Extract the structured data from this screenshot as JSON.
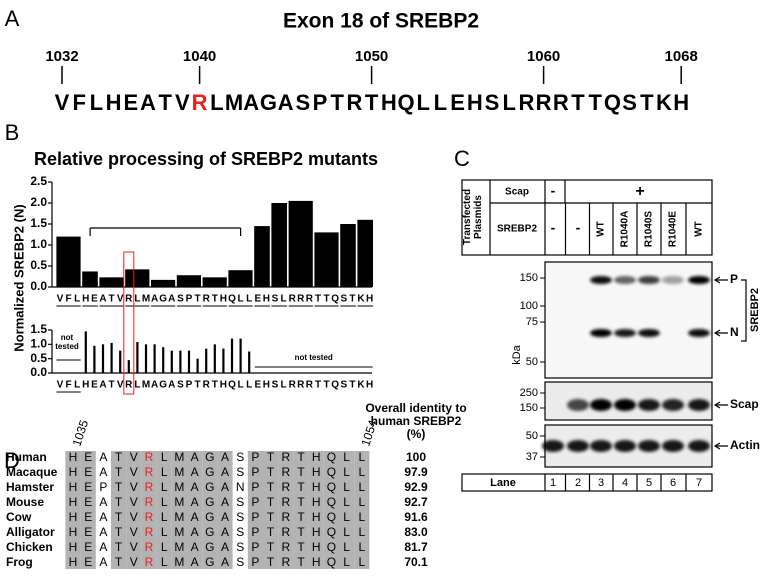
{
  "panel_labels": [
    "A",
    "B",
    "C",
    "D"
  ],
  "exon": {
    "title": "Exon 18 of SREBP2",
    "positions": [
      1032,
      1040,
      1050,
      1060,
      1068
    ],
    "sequence": [
      "V",
      "F",
      "L",
      "H",
      "E",
      "A",
      "T",
      "V",
      "R",
      "L",
      "M",
      "A",
      "G",
      "A",
      "S",
      "P",
      "T",
      "R",
      "T",
      "H",
      "Q",
      "L",
      "L",
      "E",
      "H",
      "S",
      "L",
      "R",
      "R",
      "R",
      "T",
      "T",
      "Q",
      "S",
      "T",
      "K",
      "H"
    ]
  },
  "chart_data": [
    {
      "type": "bar",
      "title": "Relative processing of SREBP2 mutants",
      "y_label": "Normalized SREBP2 (N)",
      "color": "#000000",
      "categories": [
        "VFL",
        "HE",
        "ATV",
        "RLM",
        "AGA",
        "SPT",
        "RTH",
        "QLL",
        "EH",
        "SL",
        "RRR",
        "TTQ",
        "ST",
        "KH"
      ],
      "values": [
        1.2,
        0.37,
        0.23,
        0.42,
        0.17,
        0.28,
        0.23,
        0.4,
        1.45,
        2.0,
        2.05,
        1.3,
        1.5,
        1.6
      ],
      "ylim": [
        0,
        2.5
      ],
      "yticks": [
        {
          "value": 0,
          "label": "0.0"
        },
        0.5,
        {
          "value": 1,
          "label": "1.0"
        },
        1.5,
        {
          "value": 2,
          "label": "2.0"
        },
        2.5
      ]
    },
    {
      "type": "bar",
      "color": "#000000",
      "categories": [
        "V",
        "F",
        "L",
        "H",
        "E",
        "A",
        "T",
        "V",
        "R",
        "L",
        "M",
        "A",
        "G",
        "A",
        "S",
        "P",
        "T",
        "R",
        "T",
        "H",
        "Q",
        "L",
        "L",
        "E",
        "H",
        "S",
        "L",
        "R",
        "R",
        "R",
        "T",
        "T",
        "Q",
        "S",
        "T",
        "K",
        "H"
      ],
      "values": [
        null,
        null,
        null,
        1.45,
        0.95,
        1.0,
        1.05,
        0.78,
        0.45,
        1.08,
        1.0,
        1.0,
        0.9,
        0.78,
        0.78,
        0.78,
        0.5,
        0.85,
        1.0,
        0.85,
        1.2,
        1.2,
        0.75,
        null,
        null,
        null,
        null,
        null,
        null,
        null,
        null,
        null,
        null,
        null,
        null,
        null,
        null
      ],
      "annotations": [
        "not tested",
        "not tested"
      ],
      "ylim": [
        0,
        1.5
      ],
      "yticks": [
        {
          "value": 0,
          "label": "0.0"
        },
        0.5,
        {
          "value": 1,
          "label": "1.0"
        },
        1.5
      ]
    }
  ],
  "blot": {
    "row_label": "Transfected Plasmids",
    "scap_label": "Scap",
    "scap": [
      "-",
      "+"
    ],
    "srebp2_label": "SREBP2",
    "srebp2": [
      "-",
      "-",
      "WT",
      "R1040A",
      "R1040S",
      "R1040E",
      "WT"
    ],
    "kda_label": "kDa",
    "panels": [
      {
        "markers": [
          150,
          100,
          75,
          50
        ],
        "bands": [
          "P",
          "N"
        ],
        "label": "SREBP2"
      },
      {
        "markers": [
          250,
          150
        ],
        "bands": [
          "Scap"
        ]
      },
      {
        "markers": [
          50,
          37
        ],
        "bands": [
          "Actin"
        ]
      }
    ],
    "lane_label": "Lane",
    "lanes": [
      1,
      2,
      3,
      4,
      5,
      6,
      7
    ]
  },
  "alignment": {
    "start": 1035,
    "end": 1054,
    "identity_header": "Overall identity to human SREBP2 (%)",
    "rows": [
      {
        "species": "Human",
        "sequence": [
          "H",
          "E",
          "A",
          "T",
          "V",
          "R",
          "L",
          "M",
          "A",
          "G",
          "A",
          "S",
          "P",
          "T",
          "R",
          "T",
          "H",
          "Q",
          "L",
          "L"
        ],
        "identity": 100
      },
      {
        "species": "Macaque",
        "sequence": [
          "H",
          "E",
          "A",
          "T",
          "V",
          "R",
          "L",
          "M",
          "A",
          "G",
          "A",
          "S",
          "P",
          "T",
          "R",
          "T",
          "H",
          "Q",
          "L",
          "L"
        ],
        "identity": 97.9
      },
      {
        "species": "Hamster",
        "sequence": [
          "H",
          "E",
          "P",
          "T",
          "V",
          "R",
          "L",
          "M",
          "A",
          "G",
          "A",
          "N",
          "P",
          "T",
          "R",
          "T",
          "H",
          "Q",
          "L",
          "L"
        ],
        "identity": 92.9
      },
      {
        "species": "Mouse",
        "sequence": [
          "H",
          "E",
          "A",
          "T",
          "V",
          "R",
          "L",
          "M",
          "A",
          "G",
          "A",
          "S",
          "P",
          "T",
          "R",
          "T",
          "H",
          "Q",
          "L",
          "L"
        ],
        "identity": 92.7
      },
      {
        "species": "Cow",
        "sequence": [
          "H",
          "E",
          "A",
          "T",
          "V",
          "R",
          "L",
          "M",
          "A",
          "G",
          "A",
          "S",
          "P",
          "T",
          "R",
          "T",
          "H",
          "Q",
          "L",
          "L"
        ],
        "identity": 91.6
      },
      {
        "species": "Alligator",
        "sequence": [
          "H",
          "E",
          "A",
          "T",
          "V",
          "R",
          "L",
          "M",
          "A",
          "G",
          "A",
          "S",
          "P",
          "T",
          "R",
          "T",
          "H",
          "Q",
          "L",
          "L"
        ],
        "identity": "83.0"
      },
      {
        "species": "Chicken",
        "sequence": [
          "H",
          "E",
          "A",
          "T",
          "V",
          "R",
          "L",
          "M",
          "A",
          "G",
          "A",
          "S",
          "P",
          "T",
          "R",
          "T",
          "H",
          "Q",
          "L",
          "L"
        ],
        "identity": 81.7
      },
      {
        "species": "Frog",
        "sequence": [
          "H",
          "E",
          "A",
          "T",
          "V",
          "R",
          "L",
          "M",
          "A",
          "G",
          "A",
          "S",
          "P",
          "T",
          "R",
          "T",
          "H",
          "Q",
          "L",
          "L"
        ],
        "identity": 70.1
      }
    ]
  }
}
